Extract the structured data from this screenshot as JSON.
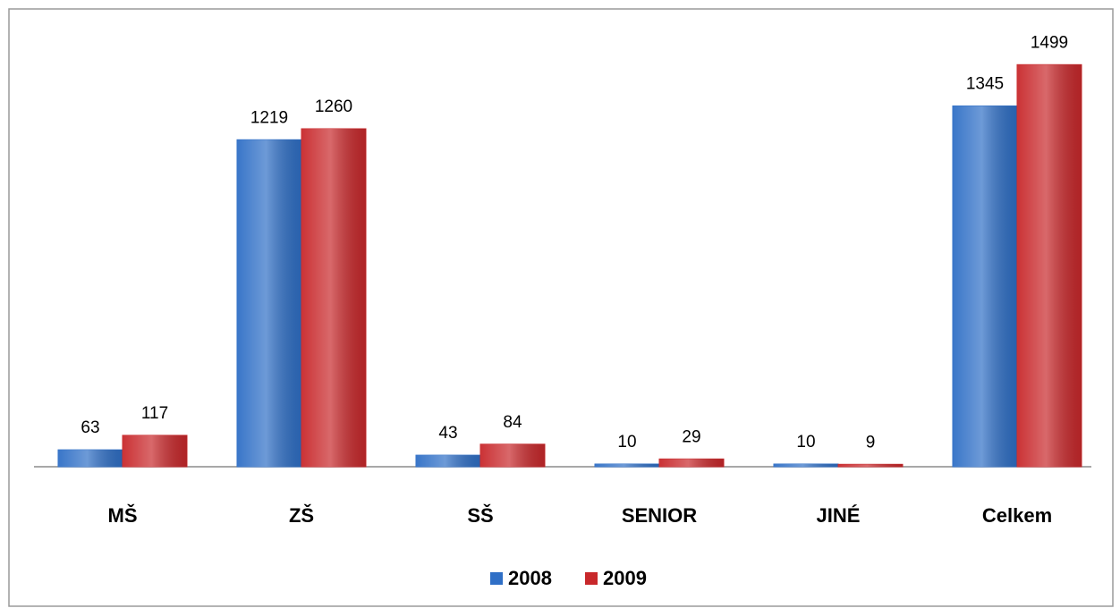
{
  "chart_data": {
    "type": "bar",
    "categories": [
      "MŠ",
      "ZŠ",
      "SŠ",
      "SENIOR",
      "JINÉ",
      "Celkem"
    ],
    "series": [
      {
        "name": "2008",
        "color": "#2f6fc6",
        "values": [
          63,
          1219,
          43,
          10,
          10,
          1345
        ]
      },
      {
        "name": "2009",
        "color": "#c8282b",
        "values": [
          117,
          1260,
          84,
          29,
          9,
          1499
        ]
      }
    ],
    "legend": "bottom"
  }
}
